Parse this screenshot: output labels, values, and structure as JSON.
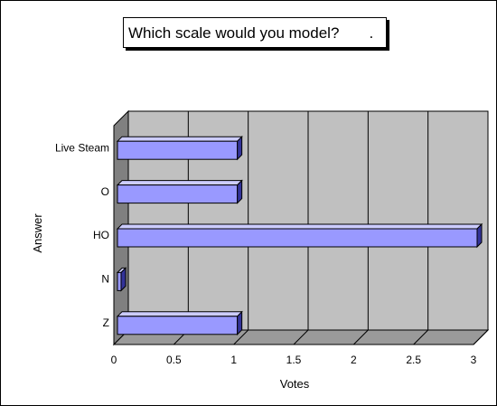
{
  "chart_data": {
    "type": "bar",
    "orientation": "horizontal",
    "style": "3d",
    "title": "Which scale would you model?       .",
    "xlabel": "Votes",
    "ylabel": "Answer",
    "categories": [
      "Live Steam",
      "O",
      "HO",
      "N",
      "Z"
    ],
    "values": [
      1,
      1,
      3,
      0,
      1
    ],
    "xlim": [
      0,
      3
    ],
    "xticks": [
      "0",
      "0.5",
      "1",
      "1.5",
      "2",
      "2.5",
      "3"
    ],
    "grid": true,
    "legend": "none",
    "colors": {
      "bar_front": "#9999ff",
      "bar_top": "#ccccff",
      "bar_side": "#333399",
      "wall": "#c0c0c0",
      "floor": "#9a9a9a",
      "side_wall": "#808080"
    }
  }
}
